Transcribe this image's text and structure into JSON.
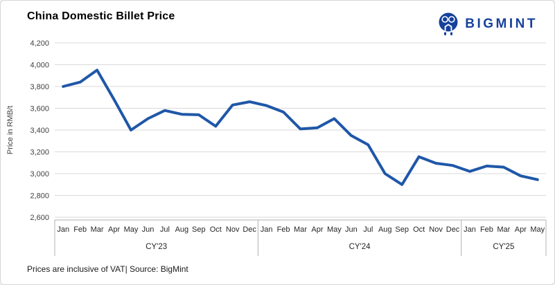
{
  "header": {
    "title": "China Domestic Billet Price",
    "brand": "BIGMINT"
  },
  "footer": {
    "note": "Prices are inclusive of VAT| Source: BigMint"
  },
  "colors": {
    "line": "#1f57a8",
    "brand": "#16419b",
    "grid": "#d9d9d9",
    "axis_line": "#b0b0b0",
    "tick_text": "#404040",
    "label_text": "#262626"
  },
  "chart_data": {
    "type": "line",
    "title": "China Domestic Billet Price",
    "xlabel": "",
    "ylabel": "Price in RMB/t",
    "ylim": [
      2600,
      4200
    ],
    "ytick_interval": 200,
    "grid": "horizontal",
    "legend": "none",
    "line_color": "#1f57a8",
    "yticks": [
      {
        "value": 2600,
        "label": "2,600"
      },
      {
        "value": 2800,
        "label": "2,800"
      },
      {
        "value": 3000,
        "label": "3,000"
      },
      {
        "value": 3200,
        "label": "3,200"
      },
      {
        "value": 3400,
        "label": "3,400"
      },
      {
        "value": 3600,
        "label": "3,600"
      },
      {
        "value": 3800,
        "label": "3,800"
      },
      {
        "value": 4000,
        "label": "4,000"
      },
      {
        "value": 4200,
        "label": "4,200"
      }
    ],
    "groups": [
      {
        "label": "CY'23",
        "categories": [
          "Jan",
          "Feb",
          "Mar",
          "Apr",
          "May",
          "Jun",
          "Jul",
          "Aug",
          "Sep",
          "Oct",
          "Nov",
          "Dec"
        ],
        "values": [
          3800,
          3840,
          3950,
          3680,
          3400,
          3505,
          3580,
          3545,
          3540,
          3435,
          3630,
          3660
        ]
      },
      {
        "label": "CY'24",
        "categories": [
          "Jan",
          "Feb",
          "Mar",
          "Apr",
          "May",
          "Jun",
          "Jul",
          "Aug",
          "Sep",
          "Oct",
          "Nov",
          "Dec"
        ],
        "values": [
          3625,
          3565,
          3410,
          3420,
          3505,
          3350,
          3265,
          3000,
          2900,
          3155,
          3095,
          3075
        ]
      },
      {
        "label": "CY'25",
        "categories": [
          "Jan",
          "Feb",
          "Mar",
          "Apr",
          "May"
        ],
        "values": [
          3020,
          3070,
          3060,
          2980,
          2945
        ]
      }
    ]
  }
}
